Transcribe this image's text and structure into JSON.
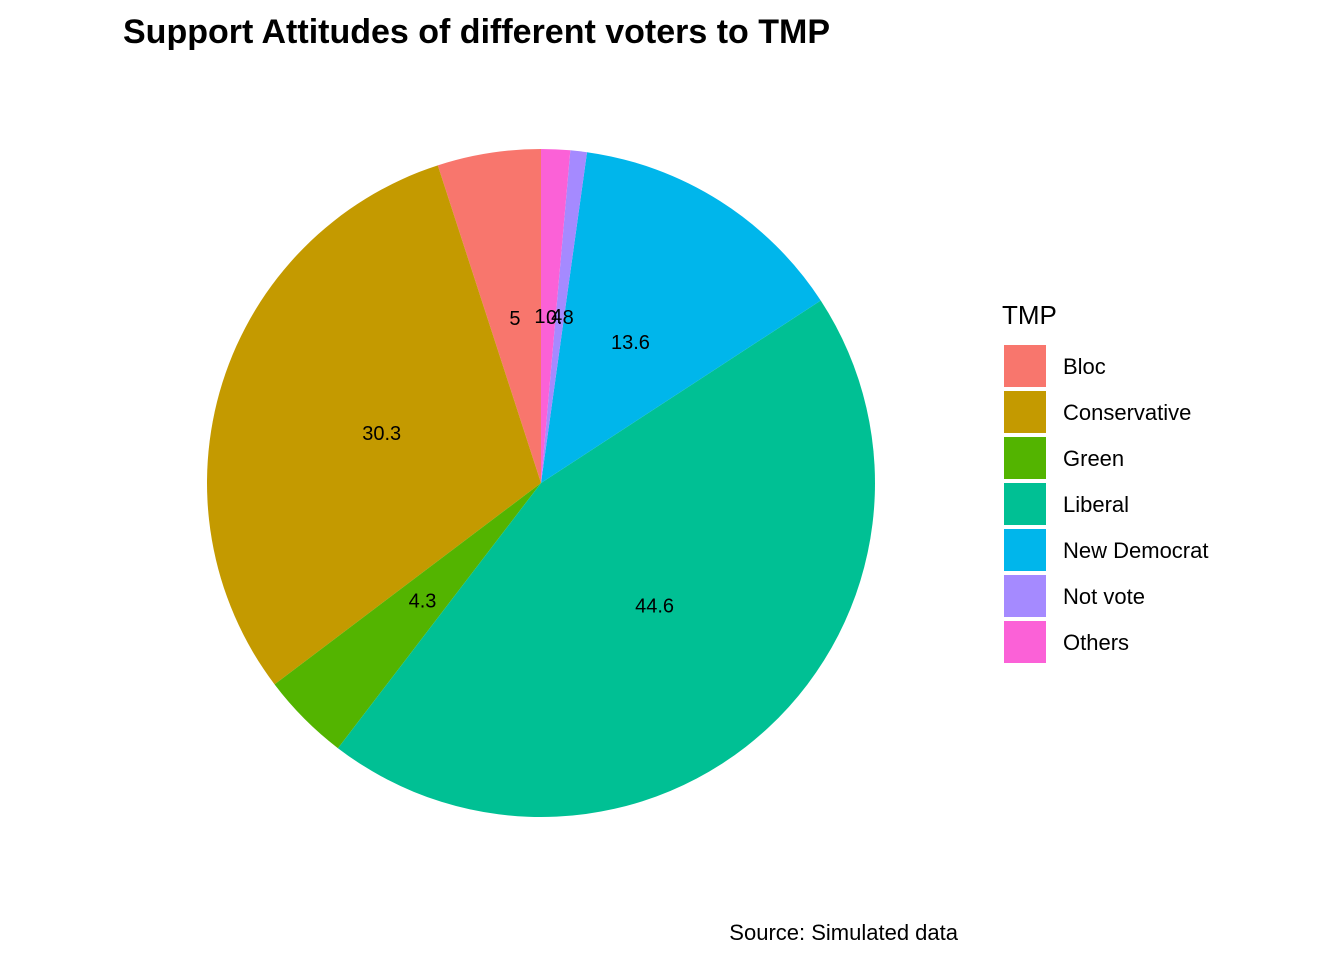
{
  "chart_data": {
    "type": "pie",
    "title": "Support Attitudes of different voters to TMP",
    "caption": "Source: Simulated data",
    "legend_title": "TMP",
    "legend_position": "right",
    "direction": "counterclockwise",
    "start": "top",
    "slices": [
      {
        "name": "Bloc",
        "value": 5,
        "label": "5",
        "color": "#F8766D"
      },
      {
        "name": "Conservative",
        "value": 30.3,
        "label": "30.3",
        "color": "#C49A00"
      },
      {
        "name": "Green",
        "value": 4.3,
        "label": "4.3",
        "color": "#53B400"
      },
      {
        "name": "Liberal",
        "value": 44.6,
        "label": "44.6",
        "color": "#00C094"
      },
      {
        "name": "New Democrat",
        "value": 13.6,
        "label": "13.6",
        "color": "#00B6EB"
      },
      {
        "name": "Not vote",
        "value": 0.8,
        "label": "0.8",
        "color": "#A58AFF"
      },
      {
        "name": "Others",
        "value": 1.4,
        "label": "1.4",
        "color": "#FB61D7"
      }
    ]
  }
}
